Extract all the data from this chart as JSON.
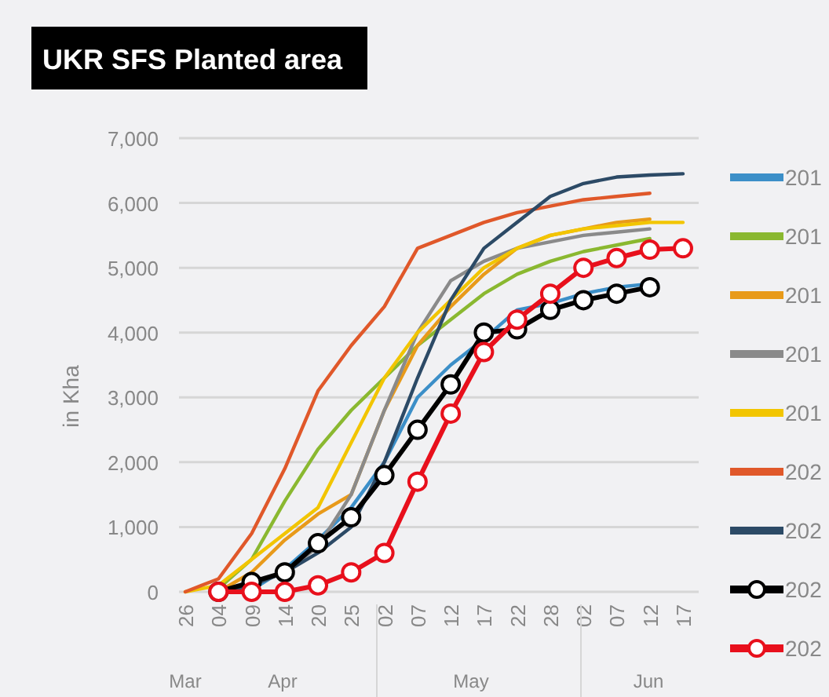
{
  "chart_data": {
    "type": "line",
    "title": "UKR SFS Planted area",
    "ylabel": "in Kha",
    "categories": [
      "26",
      "04",
      "09",
      "14",
      "20",
      "25",
      "02",
      "07",
      "12",
      "17",
      "22",
      "28",
      "02",
      "07",
      "12",
      "17"
    ],
    "annotations": [
      "Mar",
      "Apr",
      "May",
      "Jun"
    ],
    "ylim": [
      0,
      7000
    ],
    "yticks": [
      {
        "value": 0,
        "label": "0"
      },
      {
        "value": 1000,
        "label": "1,000"
      },
      {
        "value": 2000,
        "label": "2,000"
      },
      {
        "value": 3000,
        "label": "3,000"
      },
      {
        "value": 4000,
        "label": "4,000"
      },
      {
        "value": 5000,
        "label": "5,000"
      },
      {
        "value": 6000,
        "label": "6,000"
      },
      {
        "value": 7000,
        "label": "7,000"
      }
    ],
    "grid": "y",
    "legend": "right",
    "series": [
      {
        "name": "201",
        "color": "#3c8fc8",
        "values": [
          null,
          0,
          30,
          350,
          800,
          1300,
          2000,
          3000,
          3500,
          3900,
          4350,
          4450,
          4600,
          4700,
          4750,
          null
        ]
      },
      {
        "name": "201",
        "color": "#8ab830",
        "values": [
          null,
          50,
          500,
          1400,
          2200,
          2800,
          3300,
          3800,
          4200,
          4600,
          4900,
          5100,
          5250,
          5350,
          5450,
          null
        ]
      },
      {
        "name": "201",
        "color": "#e89a1a",
        "values": [
          null,
          0,
          300,
          800,
          1200,
          1500,
          2800,
          3800,
          4400,
          4900,
          5300,
          5500,
          5600,
          5700,
          5750,
          null
        ]
      },
      {
        "name": "201",
        "color": "#8a8a8a",
        "values": [
          null,
          0,
          100,
          300,
          700,
          1500,
          2800,
          4000,
          4800,
          5100,
          5300,
          5400,
          5500,
          5550,
          5600,
          null
        ]
      },
      {
        "name": "201",
        "color": "#f2c500",
        "values": [
          0,
          100,
          500,
          900,
          1300,
          2300,
          3300,
          4000,
          4500,
          5000,
          5300,
          5500,
          5600,
          5650,
          5700,
          5700
        ]
      },
      {
        "name": "202",
        "color": "#e0582a",
        "values": [
          0,
          200,
          900,
          1900,
          3100,
          3800,
          4400,
          5300,
          5500,
          5700,
          5850,
          5950,
          6050,
          6100,
          6150,
          null
        ]
      },
      {
        "name": "202",
        "color": "#2c4a66",
        "values": [
          null,
          0,
          100,
          300,
          600,
          1000,
          2000,
          3300,
          4500,
          5300,
          5700,
          6100,
          6300,
          6400,
          6430,
          6450
        ]
      },
      {
        "name": "202",
        "color": "#000000",
        "marker": "circle",
        "values": [
          null,
          0,
          150,
          300,
          750,
          1150,
          1800,
          2500,
          3200,
          4000,
          4050,
          4350,
          4500,
          4600,
          4700,
          null
        ]
      },
      {
        "name": "202",
        "color": "#e8101c",
        "marker": "circle",
        "values": [
          null,
          0,
          0,
          0,
          100,
          300,
          600,
          1700,
          2750,
          3700,
          4200,
          4600,
          5000,
          5150,
          5280,
          5300
        ]
      }
    ]
  }
}
